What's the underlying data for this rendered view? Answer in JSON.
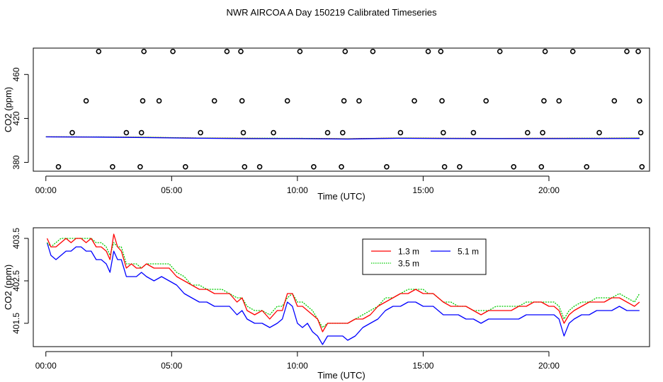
{
  "figure_title": "NWR AIRCOA A  Day 150219  Calibrated Timeseries",
  "chart_data": [
    {
      "type": "scatter",
      "panel": "top",
      "title": "",
      "xlabel": "Time (UTC)",
      "ylabel": "CO2 (ppm)",
      "xlim": [
        -0.5,
        24.0
      ],
      "ylim": [
        372,
        484
      ],
      "x_ticks": [
        0,
        5,
        10,
        15,
        20
      ],
      "x_tick_labels": [
        "00:00",
        "05:00",
        "10:00",
        "15:00",
        "20:00"
      ],
      "y_ticks": [
        380,
        420,
        460
      ],
      "y_tick_labels": [
        "380",
        "420",
        "460"
      ],
      "series": [
        {
          "name": "calibration standards",
          "marker": "open-circle",
          "color": "#000000",
          "points": [
            [
              0.5,
              376
            ],
            [
              1.05,
              407
            ],
            [
              1.6,
              436
            ],
            [
              2.1,
              481
            ],
            [
              2.65,
              376
            ],
            [
              3.2,
              407
            ],
            [
              3.75,
              376
            ],
            [
              3.8,
              407
            ],
            [
              3.85,
              436
            ],
            [
              3.9,
              481
            ],
            [
              4.5,
              436
            ],
            [
              5.05,
              481
            ],
            [
              5.55,
              376
            ],
            [
              6.15,
              407
            ],
            [
              6.7,
              436
            ],
            [
              7.2,
              481
            ],
            [
              7.75,
              481
            ],
            [
              7.8,
              436
            ],
            [
              7.85,
              407
            ],
            [
              7.9,
              376
            ],
            [
              8.5,
              376
            ],
            [
              9.05,
              407
            ],
            [
              9.6,
              436
            ],
            [
              10.1,
              481
            ],
            [
              10.65,
              376
            ],
            [
              11.2,
              407
            ],
            [
              11.75,
              376
            ],
            [
              11.8,
              407
            ],
            [
              11.85,
              436
            ],
            [
              11.9,
              481
            ],
            [
              12.45,
              436
            ],
            [
              13.0,
              481
            ],
            [
              13.55,
              376
            ],
            [
              14.1,
              407
            ],
            [
              14.65,
              436
            ],
            [
              15.2,
              481
            ],
            [
              15.7,
              481
            ],
            [
              15.75,
              436
            ],
            [
              15.8,
              407
            ],
            [
              15.85,
              376
            ],
            [
              16.45,
              376
            ],
            [
              17.0,
              407
            ],
            [
              17.5,
              436
            ],
            [
              18.05,
              481
            ],
            [
              18.6,
              376
            ],
            [
              19.15,
              407
            ],
            [
              19.7,
              376
            ],
            [
              19.75,
              407
            ],
            [
              19.8,
              436
            ],
            [
              19.85,
              481
            ],
            [
              20.4,
              436
            ],
            [
              20.95,
              481
            ],
            [
              21.5,
              376
            ],
            [
              22.0,
              407
            ],
            [
              22.6,
              436
            ],
            [
              23.1,
              481
            ],
            [
              23.55,
              481
            ],
            [
              23.6,
              436
            ],
            [
              23.65,
              407
            ],
            [
              23.7,
              376
            ]
          ]
        },
        {
          "name": "1.3 m",
          "color": "#ff0000",
          "x": [
            0.0,
            2.0,
            4.0,
            6.0,
            8.0,
            10.0,
            12.0,
            14.0,
            16.0,
            18.0,
            20.0,
            22.0,
            23.6
          ],
          "values": [
            403.3,
            403.1,
            402.8,
            402.1,
            401.9,
            401.8,
            401.5,
            402.1,
            401.9,
            401.8,
            401.9,
            401.9,
            402.1
          ]
        },
        {
          "name": "3.5 m",
          "color": "#00cc00",
          "x": [
            0.0,
            2.0,
            4.0,
            6.0,
            8.0,
            10.0,
            12.0,
            14.0,
            16.0,
            18.0,
            20.0,
            22.0,
            23.6
          ],
          "values": [
            403.3,
            403.2,
            402.9,
            402.2,
            402.0,
            401.9,
            401.5,
            402.2,
            401.9,
            401.8,
            401.9,
            402.0,
            402.2
          ]
        },
        {
          "name": "5.1 m",
          "color": "#0000ff",
          "x": [
            0.0,
            2.0,
            4.0,
            6.0,
            8.0,
            10.0,
            12.0,
            14.0,
            16.0,
            18.0,
            20.0,
            22.0,
            23.6
          ],
          "values": [
            403.2,
            403.0,
            402.6,
            402.0,
            401.6,
            401.6,
            401.2,
            401.9,
            401.7,
            401.6,
            401.6,
            401.7,
            401.8
          ]
        }
      ]
    },
    {
      "type": "line",
      "panel": "bottom",
      "title": "",
      "xlabel": "Time (UTC)",
      "ylabel": "CO2 (ppm)",
      "xlim": [
        -0.5,
        24.0
      ],
      "ylim": [
        400.95,
        403.75
      ],
      "x_ticks": [
        0,
        5,
        10,
        15,
        20
      ],
      "x_tick_labels": [
        "00:00",
        "05:00",
        "10:00",
        "15:00",
        "20:00"
      ],
      "y_ticks": [
        401.5,
        402.5,
        403.5
      ],
      "y_tick_labels": [
        "401.5",
        "402.5",
        "403.5"
      ],
      "legend": {
        "placement": "top-center",
        "entries": [
          {
            "label": "1.3 m",
            "color": "#ff0000",
            "style": "solid"
          },
          {
            "label": "5.1 m",
            "color": "#0000ff",
            "style": "solid"
          },
          {
            "label": "3.5 m",
            "color": "#00cc00",
            "style": "dotted"
          }
        ]
      },
      "series": [
        {
          "name": "1.3 m",
          "color": "#ff0000",
          "x": [
            0.05,
            0.2,
            0.4,
            0.6,
            0.8,
            1.0,
            1.2,
            1.4,
            1.6,
            1.8,
            2.0,
            2.2,
            2.4,
            2.55,
            2.7,
            2.85,
            3.0,
            3.2,
            3.4,
            3.6,
            3.8,
            4.0,
            4.3,
            4.6,
            4.9,
            5.2,
            5.5,
            5.8,
            6.1,
            6.4,
            6.7,
            7.0,
            7.3,
            7.6,
            7.8,
            8.0,
            8.3,
            8.6,
            8.9,
            9.2,
            9.4,
            9.6,
            9.8,
            10.0,
            10.2,
            10.4,
            10.6,
            10.8,
            11.0,
            11.2,
            11.4,
            11.6,
            11.8,
            12.0,
            12.3,
            12.6,
            12.9,
            13.2,
            13.5,
            13.8,
            14.1,
            14.4,
            14.7,
            15.0,
            15.2,
            15.4,
            15.6,
            15.8,
            16.1,
            16.4,
            16.7,
            17.0,
            17.3,
            17.6,
            17.9,
            18.2,
            18.5,
            18.8,
            19.1,
            19.4,
            19.7,
            20.0,
            20.2,
            20.4,
            20.6,
            20.8,
            21.0,
            21.3,
            21.6,
            21.9,
            22.2,
            22.5,
            22.8,
            23.1,
            23.4,
            23.6
          ],
          "values": [
            403.5,
            403.3,
            403.3,
            403.4,
            403.5,
            403.4,
            403.5,
            403.5,
            403.4,
            403.5,
            403.3,
            403.3,
            403.2,
            403.0,
            403.6,
            403.3,
            403.2,
            402.8,
            402.9,
            402.8,
            402.8,
            402.9,
            402.8,
            402.8,
            402.8,
            402.6,
            402.5,
            402.4,
            402.3,
            402.3,
            402.2,
            402.2,
            402.2,
            402.0,
            402.1,
            401.8,
            401.7,
            401.8,
            401.6,
            401.8,
            401.8,
            402.2,
            402.2,
            401.9,
            401.9,
            401.8,
            401.7,
            401.6,
            401.3,
            401.5,
            401.5,
            401.5,
            401.5,
            401.5,
            401.6,
            401.6,
            401.7,
            401.9,
            402.0,
            402.1,
            402.2,
            402.2,
            402.3,
            402.2,
            402.2,
            402.2,
            402.1,
            402.0,
            401.9,
            401.9,
            401.9,
            401.8,
            401.7,
            401.8,
            401.8,
            401.8,
            401.8,
            401.9,
            401.9,
            402.0,
            402.0,
            401.9,
            401.9,
            401.8,
            401.5,
            401.7,
            401.8,
            401.9,
            402.0,
            402.0,
            402.0,
            402.1,
            402.1,
            402.0,
            401.9,
            402.0
          ]
        },
        {
          "name": "3.5 m",
          "color": "#00cc00",
          "x": [
            0.05,
            0.2,
            0.4,
            0.6,
            0.8,
            1.0,
            1.2,
            1.4,
            1.6,
            1.8,
            2.0,
            2.2,
            2.4,
            2.55,
            2.7,
            2.85,
            3.0,
            3.2,
            3.4,
            3.6,
            3.8,
            4.0,
            4.3,
            4.6,
            4.9,
            5.2,
            5.5,
            5.8,
            6.1,
            6.4,
            6.7,
            7.0,
            7.3,
            7.6,
            7.8,
            8.0,
            8.3,
            8.6,
            8.9,
            9.2,
            9.4,
            9.6,
            9.8,
            10.0,
            10.2,
            10.4,
            10.6,
            10.8,
            11.0,
            11.2,
            11.4,
            11.6,
            11.8,
            12.0,
            12.3,
            12.6,
            12.9,
            13.2,
            13.5,
            13.8,
            14.1,
            14.4,
            14.7,
            15.0,
            15.2,
            15.4,
            15.6,
            15.8,
            16.1,
            16.4,
            16.7,
            17.0,
            17.3,
            17.6,
            17.9,
            18.2,
            18.5,
            18.8,
            19.1,
            19.4,
            19.7,
            20.0,
            20.2,
            20.4,
            20.6,
            20.8,
            21.0,
            21.3,
            21.6,
            21.9,
            22.2,
            22.5,
            22.8,
            23.1,
            23.4,
            23.6
          ],
          "values": [
            403.4,
            403.3,
            403.4,
            403.5,
            403.5,
            403.5,
            403.5,
            403.5,
            403.5,
            403.5,
            403.4,
            403.4,
            403.3,
            403.1,
            403.4,
            403.3,
            403.3,
            402.9,
            402.9,
            402.9,
            402.8,
            402.9,
            402.9,
            402.9,
            402.9,
            402.7,
            402.6,
            402.4,
            402.4,
            402.3,
            402.3,
            402.3,
            402.2,
            402.1,
            402.1,
            401.9,
            401.8,
            401.8,
            401.7,
            401.9,
            401.9,
            402.1,
            402.2,
            402.0,
            402.0,
            401.9,
            401.8,
            401.6,
            401.4,
            401.5,
            401.5,
            401.5,
            401.5,
            401.5,
            401.6,
            401.7,
            401.8,
            401.9,
            402.1,
            402.1,
            402.2,
            402.3,
            402.3,
            402.3,
            402.2,
            402.2,
            402.1,
            402.0,
            402.0,
            401.9,
            401.9,
            401.8,
            401.8,
            401.8,
            401.9,
            401.9,
            401.9,
            401.9,
            402.0,
            402.0,
            402.0,
            402.0,
            402.0,
            401.9,
            401.6,
            401.8,
            401.9,
            402.0,
            402.0,
            402.1,
            402.1,
            402.1,
            402.2,
            402.1,
            402.0,
            402.2
          ]
        },
        {
          "name": "5.1 m",
          "color": "#0000ff",
          "x": [
            0.05,
            0.2,
            0.4,
            0.6,
            0.8,
            1.0,
            1.2,
            1.4,
            1.6,
            1.8,
            2.0,
            2.2,
            2.4,
            2.55,
            2.7,
            2.85,
            3.0,
            3.2,
            3.4,
            3.6,
            3.8,
            4.0,
            4.3,
            4.6,
            4.9,
            5.2,
            5.5,
            5.8,
            6.1,
            6.4,
            6.7,
            7.0,
            7.3,
            7.6,
            7.8,
            8.0,
            8.3,
            8.6,
            8.9,
            9.2,
            9.4,
            9.6,
            9.8,
            10.0,
            10.2,
            10.4,
            10.6,
            10.8,
            11.0,
            11.2,
            11.4,
            11.6,
            11.8,
            12.0,
            12.3,
            12.6,
            12.9,
            13.2,
            13.5,
            13.8,
            14.1,
            14.4,
            14.7,
            15.0,
            15.2,
            15.4,
            15.6,
            15.8,
            16.1,
            16.4,
            16.7,
            17.0,
            17.3,
            17.6,
            17.9,
            18.2,
            18.5,
            18.8,
            19.1,
            19.4,
            19.7,
            20.0,
            20.2,
            20.4,
            20.6,
            20.8,
            21.0,
            21.3,
            21.6,
            21.9,
            22.2,
            22.5,
            22.8,
            23.1,
            23.4,
            23.6
          ],
          "values": [
            403.4,
            403.1,
            403.0,
            403.1,
            403.2,
            403.2,
            403.3,
            403.3,
            403.2,
            403.2,
            403.0,
            403.0,
            402.9,
            402.7,
            403.2,
            403.0,
            403.0,
            402.6,
            402.6,
            402.6,
            402.7,
            402.6,
            402.5,
            402.6,
            402.5,
            402.4,
            402.2,
            402.1,
            402.0,
            402.0,
            401.9,
            401.9,
            401.9,
            401.7,
            401.8,
            401.6,
            401.5,
            401.5,
            401.4,
            401.5,
            401.6,
            402.0,
            401.9,
            401.5,
            401.4,
            401.5,
            401.3,
            401.2,
            401.0,
            401.2,
            401.2,
            401.2,
            401.2,
            401.1,
            401.2,
            401.4,
            401.5,
            401.6,
            401.8,
            401.9,
            401.9,
            402.0,
            402.0,
            401.9,
            401.9,
            401.9,
            401.8,
            401.7,
            401.7,
            401.7,
            401.6,
            401.6,
            401.5,
            401.6,
            401.6,
            401.6,
            401.6,
            401.6,
            401.7,
            401.7,
            401.7,
            401.7,
            401.7,
            401.6,
            401.2,
            401.5,
            401.6,
            401.7,
            401.7,
            401.8,
            401.8,
            401.8,
            401.9,
            401.8,
            401.8,
            401.8
          ]
        }
      ]
    }
  ]
}
